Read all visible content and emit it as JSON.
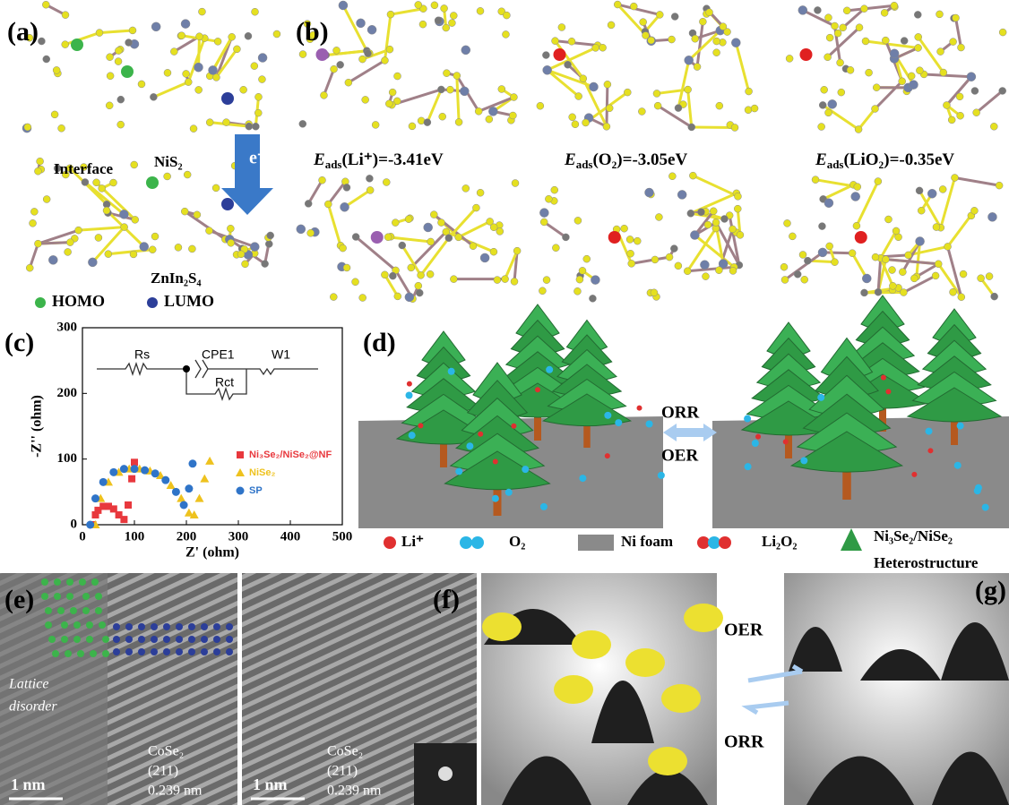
{
  "panel_a": {
    "label": "(a)",
    "interface": "Interface",
    "top": "NiS₂",
    "electron": "e⁻",
    "bottom": "ZnIn₂S₄",
    "legend": [
      "HOMO",
      "LUMO"
    ]
  },
  "panel_b": {
    "label": "(b)",
    "energies": [
      {
        "symbol": "E",
        "sub": "ads",
        "rest": "(Li⁺)=-3.41eV"
      },
      {
        "symbol": "E",
        "sub": "ads",
        "rest": "(O₂)=-3.05eV"
      },
      {
        "symbol": "E",
        "sub": "ads",
        "rest": "(LiO₂)=-0.35eV"
      }
    ]
  },
  "panel_c": {
    "label": "(c)",
    "inset": [
      "Rs",
      "CPE1",
      "W1",
      "Rct"
    ]
  },
  "chart_data": {
    "type": "scatter",
    "xlabel": "Z' (ohm)",
    "ylabel": "-Z'' (ohm)",
    "xlim": [
      0,
      500
    ],
    "ylim": [
      0,
      300
    ],
    "xticks": [
      0,
      100,
      200,
      300,
      400,
      500
    ],
    "yticks": [
      0,
      100,
      200,
      300
    ],
    "series": [
      {
        "name": "Ni₃Se₂/NiSe₂@NF",
        "color": "#e8383d",
        "marker": "square",
        "x": [
          20,
          25,
          30,
          40,
          50,
          60,
          70,
          80,
          88,
          95,
          100
        ],
        "values": [
          0,
          15,
          22,
          28,
          28,
          24,
          15,
          8,
          30,
          70,
          95
        ]
      },
      {
        "name": "NiSe₂",
        "color": "#eec21e",
        "marker": "triangle",
        "x": [
          25,
          35,
          50,
          70,
          90,
          110,
          130,
          150,
          170,
          190,
          205,
          215,
          225,
          235,
          245
        ],
        "values": [
          0,
          40,
          65,
          80,
          85,
          85,
          82,
          75,
          60,
          40,
          18,
          15,
          40,
          70,
          97
        ]
      },
      {
        "name": "SP",
        "color": "#2f74c8",
        "marker": "circle",
        "x": [
          15,
          25,
          40,
          60,
          80,
          100,
          120,
          140,
          160,
          180,
          195,
          205,
          212
        ],
        "values": [
          0,
          40,
          65,
          80,
          85,
          85,
          83,
          78,
          68,
          50,
          30,
          55,
          93
        ]
      }
    ]
  },
  "panel_d": {
    "label": "(d)",
    "orr": "ORR",
    "oer": "OER",
    "legend": [
      "Li⁺",
      "O₂",
      "Ni foam",
      "Li₂O₂",
      "Ni₃Se₂/NiSe₂",
      "Heterostructure"
    ]
  },
  "panel_e": {
    "label": "(e)",
    "disorder": [
      "Lattice",
      "disorder"
    ],
    "phase": "CoSe₂",
    "plane": "(211)",
    "spacing": "0.239 nm",
    "scale": "1 nm",
    "phase2": "CoSe₂",
    "plane2": "(211)",
    "spacing2": "0.239 nm",
    "scale2": "1 nm"
  },
  "panel_f": {
    "label": "(f)",
    "oer": "OER",
    "orr": "ORR",
    "label_g": "(g)"
  }
}
